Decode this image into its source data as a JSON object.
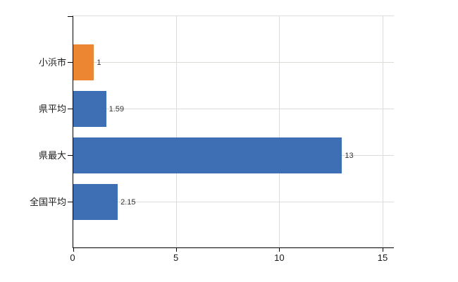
{
  "chart_data": {
    "type": "bar",
    "orientation": "horizontal",
    "title": "",
    "xlabel": "",
    "ylabel": "",
    "categories": [
      "小浜市",
      "県平均",
      "県最大",
      "全国平均"
    ],
    "values": [
      1,
      1.59,
      13,
      2.15
    ],
    "value_labels": [
      "1",
      "1.59",
      "13",
      "2.15"
    ],
    "bar_colors": [
      "#ED8633",
      "#3E6FB4",
      "#3E6FB4",
      "#3E6FB4"
    ],
    "xlim": [
      0,
      15
    ],
    "xticks": [
      0,
      5,
      10,
      15
    ],
    "xtick_labels": [
      "0",
      "5",
      "10",
      "15"
    ],
    "grid": true,
    "legend": "none"
  },
  "style": {
    "accent_orange": "#ED8633",
    "accent_blue": "#3E6FB4",
    "axis_color": "#000000",
    "gridline_color": "#dcdcdc",
    "category_gridline_color": "#d9ddd6",
    "text_color": "#1a1a1a",
    "value_text_color": "#333333",
    "background": "#ffffff"
  }
}
